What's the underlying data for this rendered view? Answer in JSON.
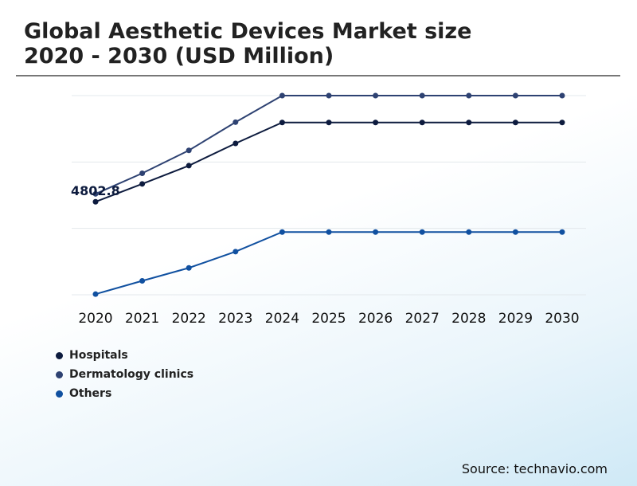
{
  "title_line1": "Global Aesthetic Devices Market size",
  "title_line2": "2020 - 2030 (USD Million)",
  "source": "Source: technavio.com",
  "chart_data": {
    "type": "line",
    "categories": [
      "2020",
      "2021",
      "2022",
      "2023",
      "2024",
      "2025",
      "2026",
      "2027",
      "2028",
      "2029",
      "2030"
    ],
    "ylim": [
      2000,
      8000
    ],
    "gridlines": [
      2000,
      4000,
      6000,
      8000
    ],
    "series": [
      {
        "name": "Hospitals",
        "color": "#0d1b3e",
        "values": [
          4802.8,
          5340,
          5890,
          6560,
          7190,
          7190,
          7190,
          7190,
          7190,
          7190,
          7190
        ]
      },
      {
        "name": "Dermatology clinics",
        "color": "#2e4272",
        "values": [
          5040,
          5660,
          6350,
          7200,
          8000,
          8000,
          8000,
          8000,
          8000,
          8000,
          8000
        ]
      },
      {
        "name": "Others",
        "color": "#1050a0",
        "values": [
          2020,
          2420,
          2810,
          3300,
          3890,
          3890,
          3890,
          3890,
          3890,
          3890,
          3890
        ]
      }
    ],
    "annotations": [
      {
        "series": 0,
        "index": 0,
        "text": "4802.8"
      }
    ]
  }
}
